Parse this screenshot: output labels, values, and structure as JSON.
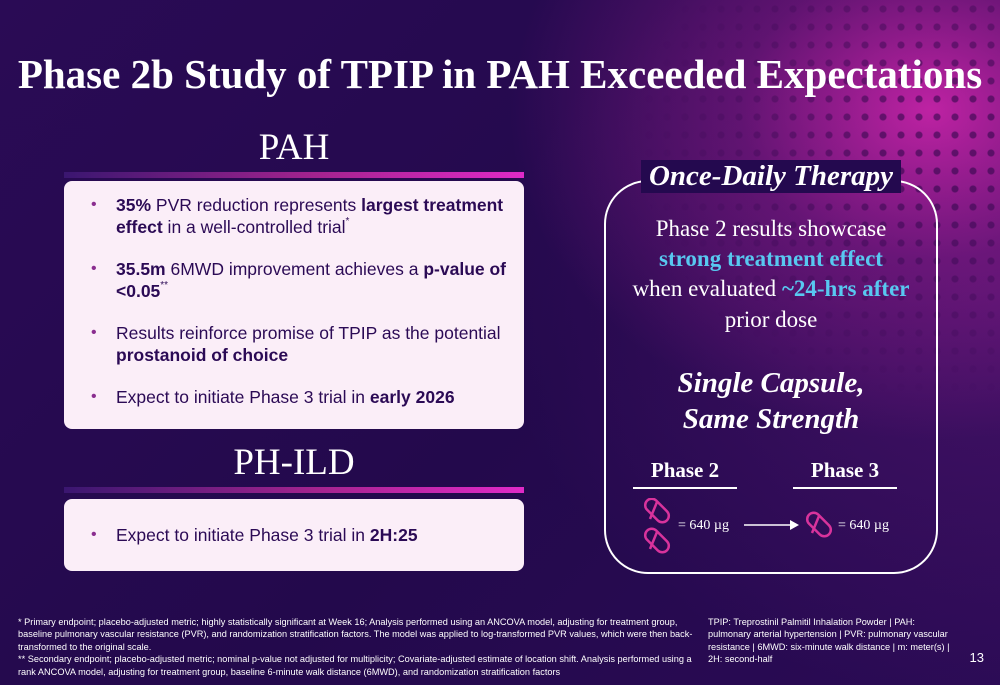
{
  "title": {
    "regular": "Phase 2b Study of TPIP in PAH ",
    "bold": "Exceeded Expectations"
  },
  "pah": {
    "heading": "PAH",
    "bullets": [
      {
        "parts": [
          {
            "t": "35%",
            "b": true
          },
          {
            "t": " PVR reduction represents ",
            "b": false
          },
          {
            "t": "largest treatment effect",
            "b": true
          },
          {
            "t": " in a well-controlled trial",
            "b": false
          }
        ],
        "sup": "*"
      },
      {
        "parts": [
          {
            "t": "35.5m",
            "b": true
          },
          {
            "t": " 6MWD improvement achieves a ",
            "b": false
          },
          {
            "t": "p-value of <0.05",
            "b": true
          }
        ],
        "sup": "**"
      },
      {
        "parts": [
          {
            "t": "Results reinforce promise of TPIP as the potential ",
            "b": false
          },
          {
            "t": "prostanoid of choice",
            "b": true
          }
        ],
        "sup": ""
      },
      {
        "parts": [
          {
            "t": "Expect to initiate Phase 3 trial in ",
            "b": false
          },
          {
            "t": "early 2026",
            "b": true
          }
        ],
        "sup": ""
      }
    ]
  },
  "phild": {
    "heading": "PH-ILD",
    "bullets": [
      {
        "parts": [
          {
            "t": "Expect to initiate Phase 3 trial in ",
            "b": false
          },
          {
            "t": "2H:25",
            "b": true
          }
        ],
        "sup": ""
      }
    ]
  },
  "right": {
    "box_title": "Once-Daily Therapy",
    "line1": "Phase 2 results showcase",
    "line2": "strong treatment effect",
    "line3_prefix": "when evaluated ",
    "line3_highlight": "~24-hrs after",
    "line4": "prior dose",
    "capsule_line1": "Single Capsule,",
    "capsule_line2": "Same Strength",
    "phase2_label": "Phase 2",
    "phase3_label": "Phase 3",
    "phase2_dose": "= 640 µg",
    "phase3_dose": "= 640 µg"
  },
  "footnotes": {
    "primary": "* Primary endpoint; placebo-adjusted metric; highly statistically significant at Week 16; Analysis performed using an ANCOVA model, adjusting for treatment group, baseline pulmonary vascular resistance (PVR), and randomization stratification factors. The model was applied to log-transformed PVR values, which were then back-transformed to the original scale.",
    "secondary": "** Secondary endpoint; placebo-adjusted metric; nominal p-value not adjusted for multiplicity; Covariate-adjusted estimate of location shift. Analysis performed using a rank ANCOVA model, adjusting for treatment group, baseline 6-minute walk distance (6MWD), and randomization stratification factors",
    "abbreviations": "TPIP: Treprostinil Palmitil Inhalation Powder | PAH: pulmonary arterial hypertension | PVR: pulmonary vascular resistance | 6MWD: six-minute walk distance | m: meter(s) | 2H: second-half"
  },
  "page_number": "13",
  "colors": {
    "background": "#24094f",
    "card": "#fbeef8",
    "cyan": "#58c8f0",
    "magenta": "#e02ac8",
    "capsule": "#d8339c"
  },
  "icons": {
    "capsule": "capsule-icon",
    "arrow": "arrow-right-icon"
  }
}
